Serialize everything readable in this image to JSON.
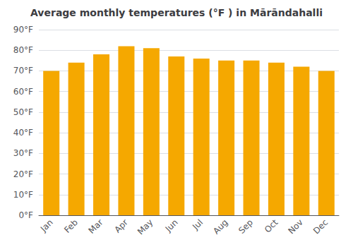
{
  "chart_data": {
    "type": "bar",
    "title": "Average monthly temperatures (°F ) in Mārāndahalli",
    "categories": [
      "Jan",
      "Feb",
      "Mar",
      "Apr",
      "May",
      "Jun",
      "Jul",
      "Aug",
      "Sep",
      "Oct",
      "Nov",
      "Dec"
    ],
    "values": [
      70,
      74,
      78,
      82,
      81,
      77,
      76,
      75,
      75,
      74,
      72,
      70
    ],
    "color": "#F5A800",
    "ylim": [
      0,
      90
    ],
    "yticks": [
      {
        "value": 0,
        "label": "0°F"
      },
      {
        "value": 10,
        "label": "10°F"
      },
      {
        "value": 20,
        "label": "20°F"
      },
      {
        "value": 30,
        "label": "30°F"
      },
      {
        "value": 40,
        "label": "40°F"
      },
      {
        "value": 50,
        "label": "50°F"
      },
      {
        "value": 60,
        "label": "60°F"
      },
      {
        "value": 70,
        "label": "70°F"
      },
      {
        "value": 80,
        "label": "80°F"
      },
      {
        "value": 90,
        "label": "90°F"
      }
    ],
    "grid": true
  }
}
